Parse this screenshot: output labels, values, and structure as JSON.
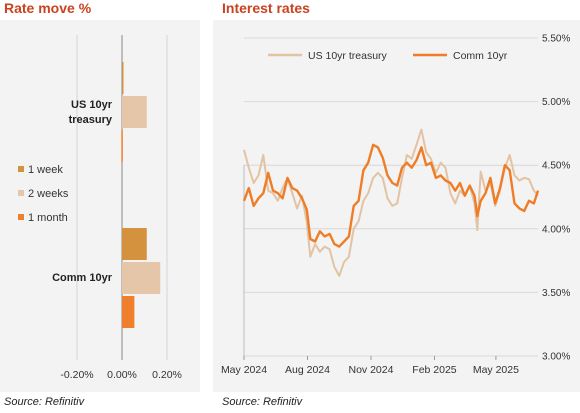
{
  "left": {
    "title": "Rate move %",
    "source": "Source: Refinitiv",
    "legend": [
      {
        "label": "1 week",
        "color": "#d4913e"
      },
      {
        "label": "2 weeks",
        "color": "#e5c6a8"
      },
      {
        "label": "1 month",
        "color": "#f07f2d"
      }
    ]
  },
  "right": {
    "title": "Interest rates",
    "source": "Source: Refinitiv"
  },
  "chart_data": [
    {
      "type": "bar",
      "orientation": "horizontal",
      "title": "Rate move %",
      "categories": [
        "US 10yr treasury",
        "Comm 10yr"
      ],
      "series": [
        {
          "name": "1 week",
          "values": [
            0.002,
            0.11
          ],
          "color": "#d4913e"
        },
        {
          "name": "2 weeks",
          "values": [
            0.11,
            0.17
          ],
          "color": "#e5c6a8"
        },
        {
          "name": "1 month",
          "values": [
            -0.003,
            0.055
          ],
          "color": "#f07f2d"
        }
      ],
      "xlim": [
        -0.25,
        0.25
      ],
      "xticks": [
        "-0.20%",
        "0.00%",
        "0.20%"
      ],
      "grid": true
    },
    {
      "type": "line",
      "title": "Interest rates",
      "x_labels": [
        "May 2024",
        "Aug 2024",
        "Nov 2024",
        "Feb 2025",
        "May 2025"
      ],
      "x_range": [
        "2024-05-01",
        "2025-07-01"
      ],
      "ylim": [
        3.0,
        5.5
      ],
      "yticks": [
        "3.00%",
        "3.50%",
        "4.00%",
        "4.50%",
        "5.00%",
        "5.50%"
      ],
      "legend_placement": "top",
      "series": [
        {
          "name": "US 10yr treasury",
          "color": "#e2c3a3",
          "points": [
            [
              "2024-05-01",
              4.62
            ],
            [
              "2024-05-08",
              4.48
            ],
            [
              "2024-05-15",
              4.36
            ],
            [
              "2024-05-22",
              4.42
            ],
            [
              "2024-05-29",
              4.58
            ],
            [
              "2024-06-05",
              4.3
            ],
            [
              "2024-06-12",
              4.28
            ],
            [
              "2024-06-19",
              4.22
            ],
            [
              "2024-06-26",
              4.32
            ],
            [
              "2024-07-03",
              4.4
            ],
            [
              "2024-07-10",
              4.28
            ],
            [
              "2024-07-17",
              4.16
            ],
            [
              "2024-07-24",
              4.26
            ],
            [
              "2024-07-31",
              4.05
            ],
            [
              "2024-08-05",
              3.78
            ],
            [
              "2024-08-12",
              3.88
            ],
            [
              "2024-08-19",
              3.82
            ],
            [
              "2024-08-26",
              3.86
            ],
            [
              "2024-09-02",
              3.84
            ],
            [
              "2024-09-09",
              3.7
            ],
            [
              "2024-09-16",
              3.63
            ],
            [
              "2024-09-23",
              3.74
            ],
            [
              "2024-09-30",
              3.78
            ],
            [
              "2024-10-07",
              4.0
            ],
            [
              "2024-10-14",
              4.06
            ],
            [
              "2024-10-21",
              4.22
            ],
            [
              "2024-10-28",
              4.28
            ],
            [
              "2024-11-04",
              4.4
            ],
            [
              "2024-11-11",
              4.44
            ],
            [
              "2024-11-18",
              4.4
            ],
            [
              "2024-11-25",
              4.24
            ],
            [
              "2024-12-02",
              4.18
            ],
            [
              "2024-12-09",
              4.2
            ],
            [
              "2024-12-16",
              4.4
            ],
            [
              "2024-12-23",
              4.58
            ],
            [
              "2024-12-30",
              4.55
            ],
            [
              "2025-01-06",
              4.66
            ],
            [
              "2025-01-13",
              4.78
            ],
            [
              "2025-01-20",
              4.6
            ],
            [
              "2025-01-27",
              4.55
            ],
            [
              "2025-02-03",
              4.44
            ],
            [
              "2025-02-10",
              4.52
            ],
            [
              "2025-02-17",
              4.48
            ],
            [
              "2025-02-24",
              4.28
            ],
            [
              "2025-03-03",
              4.2
            ],
            [
              "2025-03-10",
              4.3
            ],
            [
              "2025-03-17",
              4.26
            ],
            [
              "2025-03-24",
              4.34
            ],
            [
              "2025-03-31",
              4.2
            ],
            [
              "2025-04-04",
              3.99
            ],
            [
              "2025-04-09",
              4.45
            ],
            [
              "2025-04-16",
              4.3
            ],
            [
              "2025-04-23",
              4.36
            ],
            [
              "2025-04-30",
              4.18
            ],
            [
              "2025-05-07",
              4.3
            ],
            [
              "2025-05-14",
              4.48
            ],
            [
              "2025-05-21",
              4.58
            ],
            [
              "2025-05-28",
              4.42
            ],
            [
              "2025-06-04",
              4.38
            ],
            [
              "2025-06-11",
              4.4
            ],
            [
              "2025-06-18",
              4.39
            ],
            [
              "2025-06-25",
              4.3
            ],
            [
              "2025-07-01",
              4.26
            ]
          ]
        },
        {
          "name": "Comm 10yr",
          "color": "#ef7d27",
          "points": [
            [
              "2024-05-01",
              4.22
            ],
            [
              "2024-05-08",
              4.32
            ],
            [
              "2024-05-15",
              4.18
            ],
            [
              "2024-05-22",
              4.24
            ],
            [
              "2024-05-29",
              4.28
            ],
            [
              "2024-06-05",
              4.44
            ],
            [
              "2024-06-12",
              4.3
            ],
            [
              "2024-06-19",
              4.28
            ],
            [
              "2024-06-26",
              4.24
            ],
            [
              "2024-07-03",
              4.4
            ],
            [
              "2024-07-10",
              4.32
            ],
            [
              "2024-07-17",
              4.3
            ],
            [
              "2024-07-24",
              4.24
            ],
            [
              "2024-07-31",
              4.15
            ],
            [
              "2024-08-05",
              3.92
            ],
            [
              "2024-08-12",
              3.9
            ],
            [
              "2024-08-19",
              3.98
            ],
            [
              "2024-08-26",
              3.94
            ],
            [
              "2024-09-02",
              3.96
            ],
            [
              "2024-09-09",
              3.88
            ],
            [
              "2024-09-16",
              3.86
            ],
            [
              "2024-09-23",
              3.9
            ],
            [
              "2024-09-30",
              3.94
            ],
            [
              "2024-10-07",
              4.18
            ],
            [
              "2024-10-14",
              4.22
            ],
            [
              "2024-10-21",
              4.46
            ],
            [
              "2024-10-28",
              4.52
            ],
            [
              "2024-11-04",
              4.66
            ],
            [
              "2024-11-11",
              4.64
            ],
            [
              "2024-11-18",
              4.56
            ],
            [
              "2024-11-25",
              4.42
            ],
            [
              "2024-12-02",
              4.36
            ],
            [
              "2024-12-09",
              4.34
            ],
            [
              "2024-12-16",
              4.48
            ],
            [
              "2024-12-23",
              4.52
            ],
            [
              "2024-12-30",
              4.48
            ],
            [
              "2025-01-06",
              4.54
            ],
            [
              "2025-01-13",
              4.64
            ],
            [
              "2025-01-20",
              4.5
            ],
            [
              "2025-01-27",
              4.52
            ],
            [
              "2025-02-03",
              4.4
            ],
            [
              "2025-02-10",
              4.42
            ],
            [
              "2025-02-17",
              4.38
            ],
            [
              "2025-02-24",
              4.36
            ],
            [
              "2025-03-03",
              4.3
            ],
            [
              "2025-03-10",
              4.36
            ],
            [
              "2025-03-17",
              4.26
            ],
            [
              "2025-03-24",
              4.34
            ],
            [
              "2025-03-31",
              4.26
            ],
            [
              "2025-04-04",
              4.1
            ],
            [
              "2025-04-09",
              4.22
            ],
            [
              "2025-04-16",
              4.28
            ],
            [
              "2025-04-23",
              4.4
            ],
            [
              "2025-04-30",
              4.2
            ],
            [
              "2025-05-07",
              4.32
            ],
            [
              "2025-05-14",
              4.5
            ],
            [
              "2025-05-21",
              4.46
            ],
            [
              "2025-05-28",
              4.2
            ],
            [
              "2025-06-04",
              4.16
            ],
            [
              "2025-06-11",
              4.14
            ],
            [
              "2025-06-18",
              4.22
            ],
            [
              "2025-06-25",
              4.2
            ],
            [
              "2025-07-01",
              4.3
            ]
          ]
        }
      ]
    }
  ]
}
